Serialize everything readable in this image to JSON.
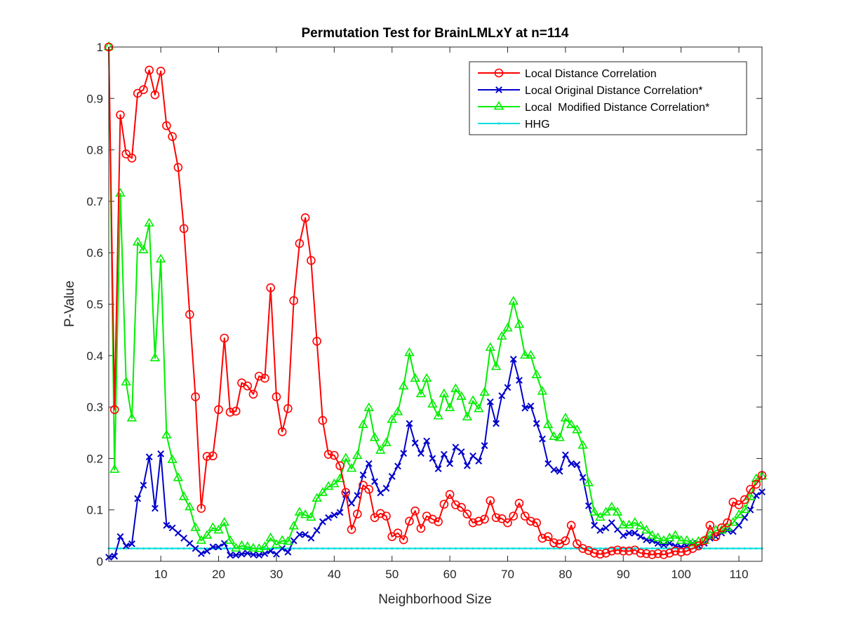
{
  "chart_data": {
    "type": "line",
    "title": "Permutation Test for BrainLMLxY at n=114",
    "xlabel": "Neighborhood Size",
    "ylabel": "P-Value",
    "xlim": [
      1,
      114
    ],
    "ylim": [
      0,
      1
    ],
    "xticks": [
      10,
      20,
      30,
      40,
      50,
      60,
      70,
      80,
      90,
      100,
      110
    ],
    "xtick_labels": [
      "10",
      "20",
      "30",
      "40",
      "50",
      "60",
      "70",
      "80",
      "90",
      "100",
      "110"
    ],
    "yticks": [
      0,
      0.1,
      0.2,
      0.3,
      0.4,
      0.5,
      0.6,
      0.7,
      0.8,
      0.9,
      1
    ],
    "ytick_labels": [
      "0",
      "0.1",
      "0.2",
      "0.3",
      "0.4",
      "0.5",
      "0.6",
      "0.7",
      "0.8",
      "0.9",
      "1"
    ],
    "grid": false,
    "legend_position": "top-right",
    "x": [
      1,
      2,
      3,
      4,
      5,
      6,
      7,
      8,
      9,
      10,
      11,
      12,
      13,
      14,
      15,
      16,
      17,
      18,
      19,
      20,
      21,
      22,
      23,
      24,
      25,
      26,
      27,
      28,
      29,
      30,
      31,
      32,
      33,
      34,
      35,
      36,
      37,
      38,
      39,
      40,
      41,
      42,
      43,
      44,
      45,
      46,
      47,
      48,
      49,
      50,
      51,
      52,
      53,
      54,
      55,
      56,
      57,
      58,
      59,
      60,
      61,
      62,
      63,
      64,
      65,
      66,
      67,
      68,
      69,
      70,
      71,
      72,
      73,
      74,
      75,
      76,
      77,
      78,
      79,
      80,
      81,
      82,
      83,
      84,
      85,
      86,
      87,
      88,
      89,
      90,
      91,
      92,
      93,
      94,
      95,
      96,
      97,
      98,
      99,
      100,
      101,
      102,
      103,
      104,
      105,
      106,
      107,
      108,
      109,
      110,
      111,
      112,
      113,
      114
    ],
    "series": [
      {
        "name": "Local Distance Correlation",
        "color": "#ff0000",
        "marker": "circle",
        "values": [
          1.0,
          0.295,
          0.868,
          0.792,
          0.784,
          0.91,
          0.917,
          0.955,
          0.907,
          0.953,
          0.847,
          0.826,
          0.766,
          0.647,
          0.48,
          0.32,
          0.103,
          0.204,
          0.205,
          0.295,
          0.434,
          0.29,
          0.292,
          0.347,
          0.341,
          0.325,
          0.36,
          0.356,
          0.532,
          0.32,
          0.252,
          0.297,
          0.507,
          0.618,
          0.668,
          0.585,
          0.428,
          0.274,
          0.208,
          0.206,
          0.186,
          0.134,
          0.062,
          0.092,
          0.148,
          0.14,
          0.085,
          0.093,
          0.088,
          0.048,
          0.055,
          0.042,
          0.078,
          0.098,
          0.064,
          0.088,
          0.082,
          0.077,
          0.111,
          0.13,
          0.11,
          0.105,
          0.092,
          0.075,
          0.078,
          0.082,
          0.118,
          0.085,
          0.083,
          0.075,
          0.088,
          0.113,
          0.088,
          0.078,
          0.075,
          0.045,
          0.048,
          0.036,
          0.034,
          0.04,
          0.07,
          0.034,
          0.025,
          0.021,
          0.016,
          0.014,
          0.016,
          0.02,
          0.022,
          0.02,
          0.02,
          0.022,
          0.016,
          0.015,
          0.013,
          0.015,
          0.013,
          0.016,
          0.02,
          0.018,
          0.02,
          0.025,
          0.03,
          0.04,
          0.07,
          0.048,
          0.065,
          0.075,
          0.115,
          0.11,
          0.12,
          0.14,
          0.15,
          0.167
        ]
      },
      {
        "name": "Local Original Distance Correlation*",
        "color": "#0000cc",
        "marker": "x",
        "values": [
          0.008,
          0.01,
          0.048,
          0.03,
          0.034,
          0.122,
          0.148,
          0.203,
          0.103,
          0.209,
          0.07,
          0.065,
          0.055,
          0.045,
          0.035,
          0.025,
          0.015,
          0.02,
          0.028,
          0.028,
          0.035,
          0.012,
          0.012,
          0.014,
          0.016,
          0.013,
          0.012,
          0.015,
          0.02,
          0.014,
          0.025,
          0.018,
          0.04,
          0.052,
          0.052,
          0.045,
          0.06,
          0.077,
          0.085,
          0.09,
          0.095,
          0.13,
          0.113,
          0.128,
          0.168,
          0.19,
          0.155,
          0.133,
          0.142,
          0.165,
          0.185,
          0.21,
          0.268,
          0.23,
          0.21,
          0.234,
          0.2,
          0.18,
          0.208,
          0.19,
          0.222,
          0.213,
          0.186,
          0.205,
          0.195,
          0.225,
          0.31,
          0.268,
          0.322,
          0.338,
          0.393,
          0.352,
          0.298,
          0.302,
          0.268,
          0.238,
          0.19,
          0.178,
          0.175,
          0.207,
          0.19,
          0.188,
          0.163,
          0.108,
          0.07,
          0.06,
          0.065,
          0.075,
          0.062,
          0.05,
          0.055,
          0.055,
          0.048,
          0.042,
          0.04,
          0.035,
          0.032,
          0.035,
          0.03,
          0.028,
          0.03,
          0.035,
          0.03,
          0.035,
          0.045,
          0.048,
          0.055,
          0.06,
          0.058,
          0.07,
          0.085,
          0.1,
          0.128,
          0.135
        ]
      },
      {
        "name": "Local  Modified Distance Correlation*",
        "color": "#00ee00",
        "marker": "triangle",
        "values": [
          1.0,
          0.178,
          0.715,
          0.348,
          0.278,
          0.62,
          0.605,
          0.657,
          0.395,
          0.587,
          0.245,
          0.197,
          0.162,
          0.125,
          0.105,
          0.065,
          0.04,
          0.05,
          0.065,
          0.06,
          0.075,
          0.04,
          0.025,
          0.03,
          0.028,
          0.025,
          0.024,
          0.028,
          0.045,
          0.032,
          0.04,
          0.038,
          0.068,
          0.095,
          0.09,
          0.085,
          0.122,
          0.133,
          0.145,
          0.15,
          0.16,
          0.2,
          0.18,
          0.205,
          0.265,
          0.298,
          0.24,
          0.215,
          0.23,
          0.275,
          0.29,
          0.34,
          0.405,
          0.355,
          0.325,
          0.355,
          0.305,
          0.282,
          0.325,
          0.298,
          0.335,
          0.32,
          0.28,
          0.312,
          0.296,
          0.328,
          0.415,
          0.378,
          0.437,
          0.453,
          0.505,
          0.46,
          0.4,
          0.4,
          0.362,
          0.33,
          0.265,
          0.242,
          0.24,
          0.278,
          0.265,
          0.255,
          0.225,
          0.152,
          0.095,
          0.085,
          0.095,
          0.105,
          0.095,
          0.07,
          0.07,
          0.075,
          0.068,
          0.06,
          0.05,
          0.045,
          0.04,
          0.045,
          0.05,
          0.04,
          0.04,
          0.035,
          0.038,
          0.04,
          0.05,
          0.06,
          0.06,
          0.065,
          0.075,
          0.09,
          0.1,
          0.125,
          0.16,
          0.165
        ]
      },
      {
        "name": "HHG",
        "color": "#00dddd",
        "marker": "dot",
        "values": [
          0.025,
          0.025,
          0.025,
          0.025,
          0.025,
          0.025,
          0.025,
          0.025,
          0.025,
          0.025,
          0.025,
          0.025,
          0.025,
          0.025,
          0.025,
          0.025,
          0.025,
          0.025,
          0.025,
          0.025,
          0.025,
          0.025,
          0.025,
          0.025,
          0.025,
          0.025,
          0.025,
          0.025,
          0.025,
          0.025,
          0.025,
          0.025,
          0.025,
          0.025,
          0.025,
          0.025,
          0.025,
          0.025,
          0.025,
          0.025,
          0.025,
          0.025,
          0.025,
          0.025,
          0.025,
          0.025,
          0.025,
          0.025,
          0.025,
          0.025,
          0.025,
          0.025,
          0.025,
          0.025,
          0.025,
          0.025,
          0.025,
          0.025,
          0.025,
          0.025,
          0.025,
          0.025,
          0.025,
          0.025,
          0.025,
          0.025,
          0.025,
          0.025,
          0.025,
          0.025,
          0.025,
          0.025,
          0.025,
          0.025,
          0.025,
          0.025,
          0.025,
          0.025,
          0.025,
          0.025,
          0.025,
          0.025,
          0.025,
          0.025,
          0.025,
          0.025,
          0.025,
          0.025,
          0.025,
          0.025,
          0.025,
          0.025,
          0.025,
          0.025,
          0.025,
          0.025,
          0.025,
          0.025,
          0.025,
          0.025,
          0.025,
          0.025,
          0.025,
          0.025,
          0.025,
          0.025,
          0.025,
          0.025,
          0.025,
          0.025,
          0.025,
          0.025,
          0.025,
          0.025
        ]
      }
    ]
  }
}
